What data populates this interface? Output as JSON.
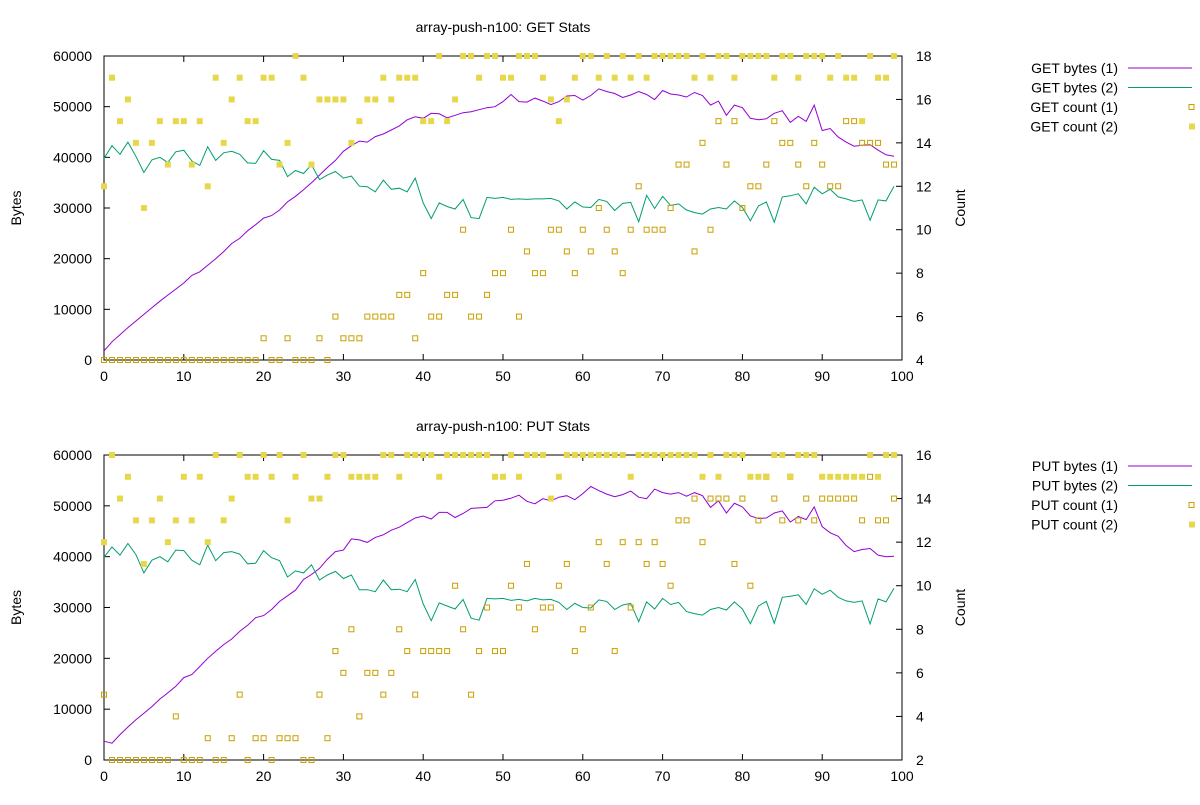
{
  "colors": {
    "series1_line": "#9400d3",
    "series2_line": "#009e73",
    "count1_marker": "#c8a000",
    "count2_marker": "#e6d84a",
    "axis": "#000000"
  },
  "chart_data": [
    {
      "type": "line",
      "title": "array-push-n100: GET Stats",
      "xlabel": "",
      "ylabel": "Bytes",
      "y2label": "Count",
      "xlim": [
        0,
        100
      ],
      "ylim": [
        0,
        60000
      ],
      "y2lim": [
        4,
        18
      ],
      "xticks": [
        "0",
        "10",
        "20",
        "30",
        "40",
        "50",
        "60",
        "70",
        "80",
        "90",
        "100"
      ],
      "yticks": [
        "0",
        "10000",
        "20000",
        "30000",
        "40000",
        "50000",
        "60000"
      ],
      "y2ticks": [
        "4",
        "6",
        "8",
        "10",
        "12",
        "14",
        "16",
        "18"
      ],
      "grid": false,
      "legend_position": "outside-right",
      "series": [
        {
          "name": "GET bytes (1)",
          "axis": "y",
          "style": "line",
          "values": [
            1800,
            3600,
            5000,
            6400,
            7700,
            9000,
            10300,
            11600,
            12800,
            14000,
            15200,
            16700,
            17400,
            18700,
            20000,
            21400,
            23000,
            24000,
            25500,
            26700,
            28000,
            28500,
            29600,
            31200,
            32300,
            33600,
            35000,
            36500,
            38000,
            39400,
            41200,
            42300,
            43200,
            43000,
            44100,
            44600,
            45400,
            46200,
            47400,
            48000,
            47700,
            48700,
            48600,
            47800,
            48300,
            48800,
            49000,
            49400,
            49800,
            50000,
            51000,
            52400,
            51000,
            50900,
            51700,
            51100,
            50400,
            51000,
            52100,
            52200,
            51300,
            52200,
            53500,
            53000,
            52600,
            51800,
            52300,
            53000,
            52400,
            51400,
            53200,
            52500,
            52300,
            51900,
            52800,
            52200,
            50300,
            51100,
            48300,
            50300,
            49800,
            47700,
            47400,
            47600,
            48700,
            49200,
            46900,
            48100,
            47100,
            50300,
            45300,
            45700,
            44000,
            43000,
            42200,
            42400,
            42500,
            41400,
            40500,
            40200
          ]
        },
        {
          "name": "GET bytes (2)",
          "axis": "y",
          "style": "line",
          "values": [
            39800,
            42300,
            40600,
            43000,
            40200,
            37000,
            39500,
            40000,
            39000,
            41100,
            41400,
            39300,
            38400,
            42100,
            39400,
            40900,
            41200,
            40600,
            38900,
            38800,
            41300,
            39600,
            39400,
            36200,
            37400,
            36800,
            38500,
            35600,
            36500,
            37200,
            35900,
            36300,
            34300,
            34200,
            33200,
            35500,
            33700,
            33900,
            33200,
            35900,
            31000,
            27900,
            31000,
            30300,
            29800,
            31700,
            28100,
            27900,
            32100,
            31900,
            32100,
            31700,
            31800,
            31700,
            31800,
            31800,
            31900,
            31400,
            29800,
            31200,
            30200,
            30100,
            31700,
            31300,
            29500,
            30900,
            31100,
            27300,
            32500,
            29900,
            32300,
            30500,
            30800,
            29600,
            29100,
            28800,
            29800,
            30100,
            29800,
            31400,
            30100,
            27500,
            30400,
            31200,
            27200,
            32200,
            32400,
            32800,
            30800,
            34100,
            32800,
            33700,
            32200,
            31800,
            31300,
            31600,
            27600,
            31600,
            31400,
            34300
          ]
        },
        {
          "name": "GET count (1)",
          "axis": "y2",
          "style": "open-square",
          "values": [
            4,
            4,
            4,
            4,
            4,
            4,
            4,
            4,
            4,
            4,
            4,
            4,
            4,
            4,
            4,
            4,
            4,
            4,
            4,
            4,
            5,
            4,
            4,
            5,
            4,
            4,
            4,
            5,
            4,
            6,
            5,
            5,
            5,
            6,
            6,
            6,
            6,
            7,
            7,
            5,
            8,
            6,
            6,
            7,
            7,
            10,
            6,
            6,
            7,
            8,
            8,
            10,
            6,
            9,
            8,
            8,
            10,
            10,
            9,
            8,
            10,
            9,
            11,
            10,
            9,
            8,
            10,
            12,
            10,
            10,
            10,
            11,
            13,
            13,
            9,
            14,
            10,
            15,
            13,
            15,
            11,
            12,
            12,
            13,
            15,
            14,
            14,
            13,
            12,
            14,
            13,
            12,
            12,
            15,
            15,
            14,
            14,
            14,
            13,
            13
          ]
        },
        {
          "name": "GET count (2)",
          "axis": "y2",
          "style": "filled-square",
          "values": [
            12,
            17,
            15,
            16,
            14,
            11,
            14,
            15,
            13,
            15,
            15,
            13,
            15,
            12,
            17,
            14,
            16,
            17,
            15,
            15,
            17,
            17,
            13,
            14,
            18,
            17,
            13,
            16,
            16,
            16,
            16,
            14,
            15,
            16,
            16,
            17,
            16,
            17,
            17,
            17,
            15,
            15,
            18,
            15,
            16,
            18,
            18,
            17,
            18,
            18,
            17,
            17,
            18,
            18,
            18,
            17,
            16,
            15,
            16,
            17,
            18,
            18,
            17,
            18,
            17,
            18,
            17,
            18,
            17,
            18,
            18,
            18,
            18,
            18,
            17,
            18,
            17,
            18,
            18,
            17,
            18,
            18,
            18,
            18,
            17,
            18,
            18,
            17,
            18,
            18,
            18,
            17,
            18,
            17,
            17,
            15,
            18,
            17,
            17,
            18
          ]
        }
      ]
    },
    {
      "type": "line",
      "title": "array-push-n100: PUT Stats",
      "xlabel": "",
      "ylabel": "Bytes",
      "y2label": "Count",
      "xlim": [
        0,
        100
      ],
      "ylim": [
        0,
        60000
      ],
      "y2lim": [
        2,
        16
      ],
      "xticks": [
        "0",
        "10",
        "20",
        "30",
        "40",
        "50",
        "60",
        "70",
        "80",
        "90",
        "100"
      ],
      "yticks": [
        "0",
        "10000",
        "20000",
        "30000",
        "40000",
        "50000",
        "60000"
      ],
      "y2ticks": [
        "2",
        "4",
        "6",
        "8",
        "10",
        "12",
        "14",
        "16"
      ],
      "grid": false,
      "legend_position": "outside-right",
      "series": [
        {
          "name": "PUT bytes (1)",
          "axis": "y",
          "style": "line",
          "values": [
            3700,
            3300,
            5000,
            6500,
            7900,
            9200,
            10500,
            12000,
            13200,
            14500,
            16200,
            16800,
            18400,
            20000,
            21400,
            22700,
            23800,
            25300,
            26500,
            28000,
            28400,
            29600,
            31200,
            32300,
            33400,
            35500,
            36500,
            37700,
            39500,
            41000,
            41300,
            43500,
            43300,
            42800,
            43800,
            44300,
            45200,
            45800,
            46700,
            47600,
            48000,
            47400,
            48700,
            48700,
            47700,
            48500,
            49500,
            49600,
            49700,
            51000,
            51100,
            51500,
            52100,
            50900,
            50400,
            51400,
            51000,
            51700,
            52000,
            51200,
            52400,
            53800,
            53000,
            52300,
            51800,
            52200,
            52900,
            51700,
            51400,
            53300,
            52600,
            52300,
            52600,
            51900,
            52600,
            52000,
            49700,
            51000,
            48600,
            50500,
            49800,
            48000,
            47500,
            47600,
            48600,
            49000,
            46800,
            47900,
            47300,
            49800,
            45900,
            44700,
            44000,
            42200,
            41000,
            41400,
            41600,
            40300,
            40000,
            40100
          ]
        },
        {
          "name": "PUT bytes (2)",
          "axis": "y",
          "style": "line",
          "values": [
            39900,
            41900,
            40300,
            42600,
            40400,
            36800,
            39300,
            40000,
            39000,
            41300,
            41200,
            39300,
            38400,
            42300,
            39200,
            40800,
            41000,
            40500,
            38600,
            38700,
            41200,
            39800,
            39200,
            36000,
            37200,
            36800,
            38400,
            35400,
            36400,
            37100,
            35700,
            36400,
            33500,
            33500,
            33100,
            35400,
            33500,
            33600,
            33100,
            35500,
            30700,
            27400,
            30900,
            30300,
            29700,
            31600,
            27900,
            27500,
            31800,
            31700,
            31800,
            31400,
            31600,
            31300,
            31800,
            31500,
            31600,
            31000,
            29600,
            30800,
            30000,
            29900,
            31500,
            31200,
            29600,
            30500,
            30800,
            27200,
            31100,
            29700,
            31800,
            30600,
            31000,
            29200,
            28800,
            28500,
            29600,
            30000,
            29500,
            31100,
            29700,
            26800,
            30300,
            31200,
            26900,
            32000,
            32200,
            32500,
            30600,
            33700,
            32600,
            33400,
            32000,
            31300,
            31000,
            31300,
            26800,
            31700,
            31100,
            33800
          ]
        },
        {
          "name": "PUT count (1)",
          "axis": "y2",
          "style": "open-square",
          "values": [
            5,
            2,
            2,
            2,
            2,
            2,
            2,
            2,
            2,
            4,
            2,
            2,
            2,
            3,
            2,
            2,
            3,
            5,
            2,
            3,
            3,
            2,
            3,
            3,
            3,
            2,
            2,
            5,
            3,
            7,
            6,
            8,
            4,
            6,
            6,
            5,
            6,
            8,
            7,
            5,
            7,
            7,
            7,
            7,
            10,
            8,
            5,
            7,
            9,
            7,
            7,
            10,
            9,
            11,
            8,
            9,
            9,
            10,
            11,
            7,
            8,
            9,
            12,
            11,
            7,
            12,
            9,
            12,
            11,
            12,
            11,
            10,
            13,
            13,
            14,
            12,
            14,
            14,
            14,
            11,
            14,
            10,
            13,
            15,
            14,
            13,
            15,
            13,
            14,
            13,
            14,
            14,
            14,
            14,
            14,
            13,
            15,
            13,
            13,
            14
          ]
        },
        {
          "name": "PUT count (2)",
          "axis": "y2",
          "style": "filled-square",
          "values": [
            12,
            16,
            14,
            15,
            13,
            11,
            13,
            14,
            12,
            13,
            15,
            13,
            15,
            12,
            16,
            13,
            14,
            16,
            15,
            15,
            16,
            15,
            16,
            13,
            15,
            16,
            14,
            14,
            15,
            16,
            16,
            15,
            15,
            15,
            15,
            16,
            16,
            15,
            16,
            16,
            16,
            16,
            15,
            16,
            16,
            16,
            16,
            16,
            16,
            15,
            15,
            16,
            15,
            16,
            16,
            16,
            14,
            15,
            16,
            16,
            16,
            16,
            16,
            16,
            16,
            16,
            15,
            16,
            16,
            16,
            16,
            16,
            16,
            16,
            16,
            15,
            16,
            15,
            16,
            16,
            16,
            15,
            15,
            15,
            16,
            16,
            15,
            16,
            16,
            16,
            15,
            15,
            15,
            15,
            15,
            15,
            16,
            15,
            16,
            16
          ]
        }
      ]
    }
  ]
}
